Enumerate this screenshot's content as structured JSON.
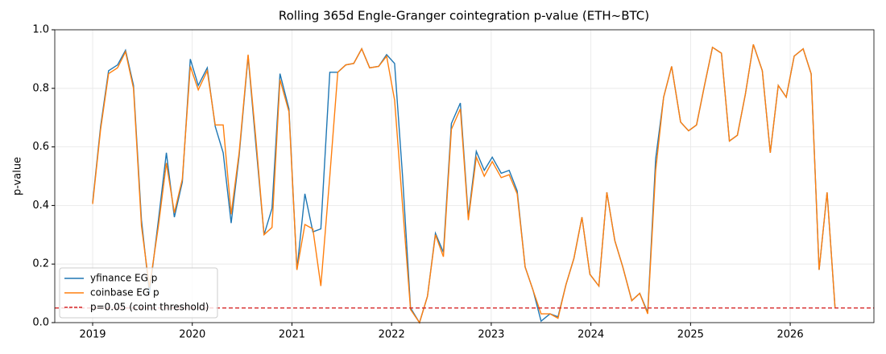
{
  "chart_data": {
    "type": "line",
    "title": "Rolling 365d Engle-Granger cointegration p-value (ETH~BTC)",
    "y_label": "p-value",
    "x": [
      2019.0,
      2019.08,
      2019.16,
      2019.25,
      2019.33,
      2019.41,
      2019.49,
      2019.57,
      2019.66,
      2019.74,
      2019.82,
      2019.9,
      2019.98,
      2020.06,
      2020.15,
      2020.23,
      2020.31,
      2020.39,
      2020.47,
      2020.56,
      2020.64,
      2020.72,
      2020.8,
      2020.88,
      2020.97,
      2021.05,
      2021.13,
      2021.21,
      2021.29,
      2021.38,
      2021.46,
      2021.54,
      2021.62,
      2021.7,
      2021.78,
      2021.87,
      2021.95,
      2022.03,
      2022.11,
      2022.19,
      2022.28,
      2022.36,
      2022.44,
      2022.52,
      2022.6,
      2022.69,
      2022.77,
      2022.85,
      2022.93,
      2023.01,
      2023.1,
      2023.18,
      2023.26,
      2023.34,
      2023.42,
      2023.5,
      2023.59,
      2023.67,
      2023.75,
      2023.83,
      2023.91,
      2023.99,
      2024.08,
      2024.16,
      2024.24,
      2024.32,
      2024.41,
      2024.49,
      2024.57,
      2024.65,
      2024.73,
      2024.81,
      2024.9,
      2024.98,
      2025.06,
      2025.14,
      2025.22,
      2025.31,
      2025.39,
      2025.47,
      2025.55,
      2025.63,
      2025.72,
      2025.8,
      2025.88,
      2025.96,
      2026.04,
      2026.13,
      2026.21,
      2026.29,
      2026.37,
      2026.45
    ],
    "series": [
      {
        "name": "yfinance EG p",
        "color": "#1f77b4",
        "values": [
          0.41,
          0.67,
          0.86,
          0.88,
          0.93,
          0.81,
          0.35,
          0.1,
          0.35,
          0.58,
          0.36,
          0.48,
          0.9,
          0.81,
          0.87,
          0.67,
          0.58,
          0.34,
          0.57,
          0.91,
          0.6,
          0.3,
          0.39,
          0.85,
          0.73,
          0.18,
          0.44,
          0.31,
          0.32,
          0.855,
          0.855,
          0.88,
          0.885,
          0.935,
          0.87,
          0.875,
          0.915,
          0.885,
          0.5,
          0.05,
          0.0,
          0.09,
          0.305,
          0.24,
          0.68,
          0.75,
          0.36,
          0.585,
          0.52,
          0.565,
          0.51,
          0.52,
          0.45,
          0.19,
          0.11,
          0.005,
          0.03,
          0.02,
          0.13,
          0.22,
          0.36,
          0.165,
          0.125,
          0.445,
          0.28,
          0.19,
          0.075,
          0.1,
          0.035,
          0.56,
          0.77,
          0.875,
          0.685,
          0.655,
          0.675,
          0.81,
          0.94,
          0.92,
          0.62,
          0.64,
          0.78,
          0.95,
          0.86,
          0.58,
          0.81,
          0.77,
          0.91,
          0.935,
          0.85,
          0.18,
          0.445,
          0.05
        ]
      },
      {
        "name": "coinbase EG p",
        "color": "#ff7f0e",
        "values": [
          0.405,
          0.66,
          0.85,
          0.87,
          0.925,
          0.8,
          0.33,
          0.12,
          0.33,
          0.545,
          0.375,
          0.49,
          0.875,
          0.795,
          0.86,
          0.675,
          0.675,
          0.37,
          0.58,
          0.915,
          0.62,
          0.3,
          0.325,
          0.83,
          0.72,
          0.18,
          0.335,
          0.32,
          0.125,
          0.5,
          0.855,
          0.88,
          0.885,
          0.935,
          0.87,
          0.875,
          0.91,
          0.76,
          0.4,
          0.045,
          0.0,
          0.09,
          0.3,
          0.225,
          0.66,
          0.73,
          0.35,
          0.565,
          0.5,
          0.55,
          0.495,
          0.505,
          0.44,
          0.19,
          0.11,
          0.03,
          0.03,
          0.015,
          0.13,
          0.22,
          0.36,
          0.165,
          0.125,
          0.445,
          0.28,
          0.19,
          0.075,
          0.1,
          0.03,
          0.52,
          0.77,
          0.875,
          0.685,
          0.655,
          0.675,
          0.81,
          0.94,
          0.92,
          0.62,
          0.64,
          0.78,
          0.95,
          0.86,
          0.58,
          0.81,
          0.77,
          0.91,
          0.935,
          0.85,
          0.18,
          0.445,
          0.05
        ]
      }
    ],
    "threshold": {
      "value": 0.05,
      "label": "p=0.05 (coint threshold)",
      "color": "#d62728"
    },
    "xlim": [
      2018.62,
      2026.84
    ],
    "xticks": [
      2019,
      2020,
      2021,
      2022,
      2023,
      2024,
      2025,
      2026
    ],
    "ylim": [
      0,
      1
    ],
    "yticks": [
      {
        "value": 0,
        "label": "0.0"
      },
      {
        "value": 0.2,
        "label": "0.2"
      },
      {
        "value": 0.4,
        "label": "0.4"
      },
      {
        "value": 0.6,
        "label": "0.6"
      },
      {
        "value": 0.8,
        "label": "0.8"
      },
      {
        "value": 1,
        "label": "1.0"
      }
    ],
    "grid": true,
    "legend": "lower-left"
  }
}
